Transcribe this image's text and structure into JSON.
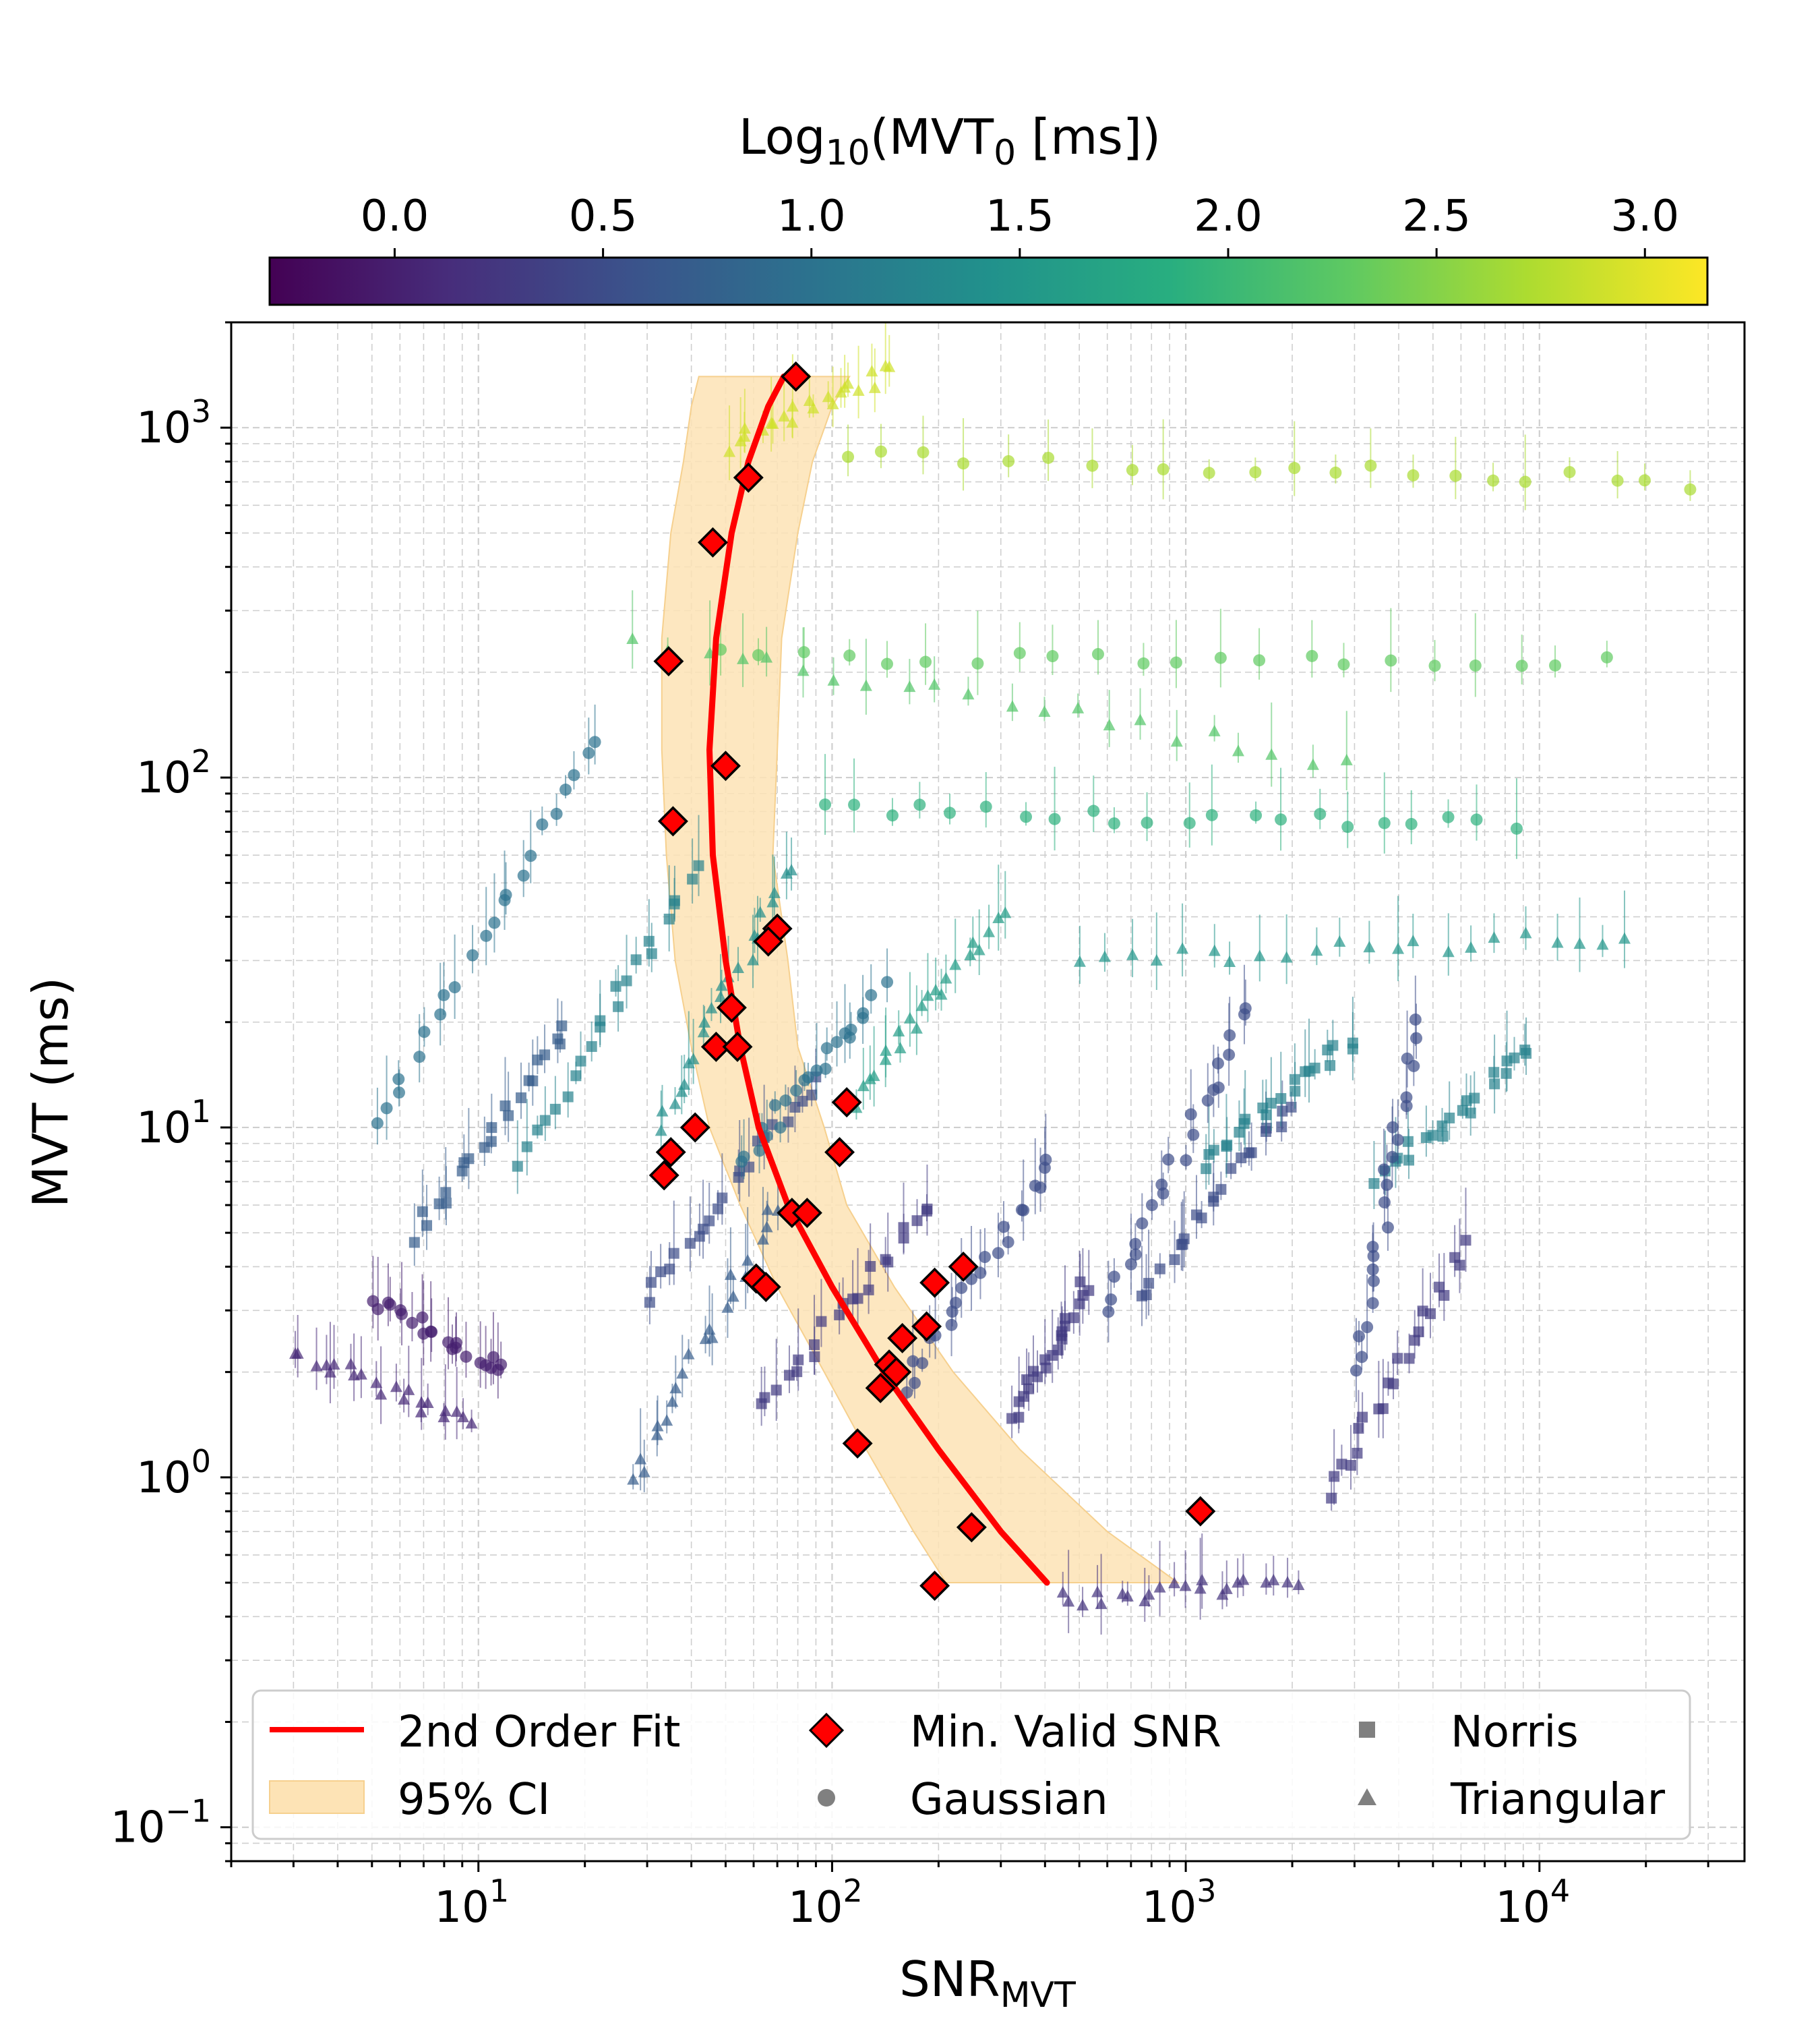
{
  "chart_data": {
    "type": "scatter",
    "xscale": "log",
    "yscale": "log",
    "xlim": [
      2,
      38000
    ],
    "ylim": [
      0.08,
      2000
    ],
    "xlabel": {
      "main": "SNR",
      "sub": "MVT"
    },
    "ylabel": "MVT (ms)",
    "x_ticks": [
      {
        "base": "10",
        "exp": "1",
        "value": 10
      },
      {
        "base": "10",
        "exp": "2",
        "value": 100
      },
      {
        "base": "10",
        "exp": "3",
        "value": 1000
      },
      {
        "base": "10",
        "exp": "4",
        "value": 10000
      }
    ],
    "y_ticks": [
      {
        "base": "10",
        "exp": "−1",
        "value": 0.1
      },
      {
        "base": "10",
        "exp": "0",
        "value": 1
      },
      {
        "base": "10",
        "exp": "1",
        "value": 10
      },
      {
        "base": "10",
        "exp": "2",
        "value": 100
      },
      {
        "base": "10",
        "exp": "3",
        "value": 1000
      }
    ],
    "grid": true,
    "colorbar": {
      "label_parts": [
        "Log",
        "10",
        "(MVT",
        "0",
        " [ms])"
      ],
      "range": [
        -0.3,
        3.15
      ],
      "ticks": [
        "0.0",
        "0.5",
        "1.0",
        "1.5",
        "2.0",
        "2.5",
        "3.0"
      ],
      "tick_values": [
        0.0,
        0.5,
        1.0,
        1.5,
        2.0,
        2.5,
        3.0
      ],
      "colormap": "viridis"
    },
    "legend": {
      "placement": "lower-center",
      "entries": [
        {
          "label": "2nd Order Fit",
          "kind": "line",
          "color": "#ff0000"
        },
        {
          "label": "Min. Valid SNR",
          "kind": "diamond",
          "color": "#ff0000"
        },
        {
          "label": "Norris",
          "kind": "square",
          "color": "#808080"
        },
        {
          "label": "95% CI",
          "kind": "band",
          "color": "#fde3b5"
        },
        {
          "label": "Gaussian",
          "kind": "circle",
          "color": "#808080"
        },
        {
          "label": "Triangular",
          "kind": "triangle",
          "color": "#808080"
        }
      ]
    },
    "fit": {
      "name": "2nd Order Fit",
      "color": "#ff0000",
      "x": [
        405,
        300,
        200,
        140,
        100,
        75,
        62,
        55,
        50,
        46,
        45,
        47,
        52,
        58,
        66,
        73
      ],
      "y": [
        0.5,
        0.7,
        1.2,
        2,
        3.5,
        6,
        10,
        17,
        30,
        60,
        120,
        250,
        500,
        800,
        1150,
        1400
      ]
    },
    "ci_band": {
      "name": "95% CI",
      "color": "#fde3b5",
      "y": [
        0.5,
        0.7,
        1.2,
        2,
        3.5,
        6,
        10,
        17,
        30,
        60,
        120,
        250,
        500,
        800,
        1150,
        1400
      ],
      "x_low": [
        210,
        170,
        125,
        95,
        70,
        55,
        45,
        40,
        36,
        34,
        33,
        33,
        35,
        38,
        40,
        42
      ],
      "x_high": [
        950,
        600,
        340,
        220,
        150,
        110,
        95,
        80,
        75,
        68,
        70,
        72,
        80,
        88,
        100,
        112
      ]
    },
    "min_valid_snr": {
      "name": "Min. Valid SNR",
      "color": "#ff0000",
      "points": [
        [
          79,
          1400
        ],
        [
          58,
          720
        ],
        [
          46,
          470
        ],
        [
          34.5,
          215
        ],
        [
          50,
          108
        ],
        [
          35.5,
          75
        ],
        [
          70,
          37
        ],
        [
          66,
          34
        ],
        [
          52,
          22
        ],
        [
          47,
          17
        ],
        [
          54,
          17
        ],
        [
          35,
          8.5
        ],
        [
          33.5,
          7.3
        ],
        [
          41,
          10
        ],
        [
          110,
          11.8
        ],
        [
          105,
          8.5
        ],
        [
          77,
          5.7
        ],
        [
          85,
          5.7
        ],
        [
          61,
          3.7
        ],
        [
          65,
          3.5
        ],
        [
          195,
          3.6
        ],
        [
          235,
          4.0
        ],
        [
          185,
          2.7
        ],
        [
          158,
          2.5
        ],
        [
          145,
          2.1
        ],
        [
          152,
          2.0
        ],
        [
          137,
          1.8
        ],
        [
          118,
          1.25
        ],
        [
          1100,
          0.8
        ],
        [
          248,
          0.72
        ],
        [
          195,
          0.49
        ]
      ]
    },
    "series": [
      {
        "name": "Norris",
        "marker": "square",
        "color_by": "log10(MVT0)",
        "families": [
          {
            "log_mvt0": 0.7,
            "start": [
              6.5,
              4.8
            ],
            "end": [
              18,
              20
            ]
          },
          {
            "log_mvt0": 1.2,
            "start": [
              13,
              8
            ],
            "end": [
              42,
              55
            ]
          },
          {
            "log_mvt0": 0.5,
            "start": [
              30,
              3.3
            ],
            "end": [
              90,
              14
            ]
          },
          {
            "log_mvt0": 0.3,
            "start": [
              62,
              1.6
            ],
            "end": [
              190,
              6
            ]
          },
          {
            "log_mvt0": 0.3,
            "start": [
              330,
              1.5
            ],
            "end": [
              520,
              3.5
            ]
          },
          {
            "log_mvt0": 0.5,
            "start": [
              740,
              3.3
            ],
            "end": [
              2000,
              12
            ]
          },
          {
            "log_mvt0": 1.2,
            "start": [
              1100,
              8
            ],
            "end": [
              3000,
              18
            ]
          },
          {
            "log_mvt0": 1.2,
            "start": [
              3500,
              7
            ],
            "end": [
              9500,
              17
            ]
          },
          {
            "log_mvt0": 0.3,
            "start": [
              2500,
              0.9
            ],
            "end": [
              6200,
              4.5
            ]
          }
        ]
      },
      {
        "name": "Gaussian",
        "marker": "circle",
        "color_by": "log10(MVT0)",
        "families": [
          {
            "log_mvt0": 0.0,
            "start": [
              5,
              3.2
            ],
            "end": [
              12,
              2
            ]
          },
          {
            "log_mvt0": 1.0,
            "start": [
              5,
              10
            ],
            "end": [
              22,
              130
            ]
          },
          {
            "log_mvt0": 1.0,
            "start": [
              55,
              8
            ],
            "end": [
              140,
              25
            ]
          },
          {
            "log_mvt0": 0.5,
            "start": [
              160,
              1.8
            ],
            "end": [
              420,
              8
            ]
          },
          {
            "log_mvt0": 0.5,
            "start": [
              600,
              3
            ],
            "end": [
              1500,
              22
            ]
          },
          {
            "log_mvt0": 0.5,
            "start": [
              3000,
              2
            ],
            "end": [
              4500,
              20
            ]
          },
          {
            "log_mvt0": 2.7,
            "start": [
              110,
              820
            ],
            "end": [
              27000,
              700
            ]
          },
          {
            "log_mvt0": 2.3,
            "start": [
              48,
              220
            ],
            "end": [
              15000,
              210
            ]
          },
          {
            "log_mvt0": 1.9,
            "start": [
              95,
              80
            ],
            "end": [
              8500,
              75
            ]
          }
        ]
      },
      {
        "name": "Triangular",
        "marker": "triangle",
        "color_by": "log10(MVT0)",
        "families": [
          {
            "log_mvt0": 0.1,
            "start": [
              3,
              2.3
            ],
            "end": [
              10,
              1.4
            ]
          },
          {
            "log_mvt0": 0.7,
            "start": [
              27,
              1
            ],
            "end": [
              70,
              6
            ]
          },
          {
            "log_mvt0": 1.4,
            "start": [
              33,
              10
            ],
            "end": [
              75,
              55
            ]
          },
          {
            "log_mvt0": 1.6,
            "start": [
              115,
              12
            ],
            "end": [
              300,
              40
            ]
          },
          {
            "log_mvt0": 1.5,
            "start": [
              500,
              30
            ],
            "end": [
              18000,
              35
            ]
          },
          {
            "log_mvt0": 2.2,
            "start": [
              28,
              250
            ],
            "end": [
              2800,
              110
            ]
          },
          {
            "log_mvt0": 2.9,
            "start": [
              50,
              900
            ],
            "end": [
              150,
              1450
            ]
          },
          {
            "log_mvt0": 0.2,
            "start": [
              450,
              0.45
            ],
            "end": [
              2000,
              0.5
            ]
          }
        ]
      }
    ]
  }
}
